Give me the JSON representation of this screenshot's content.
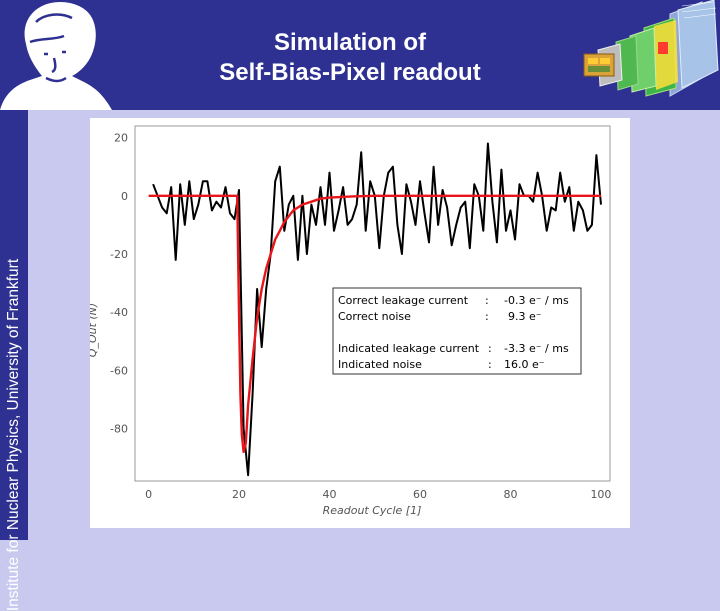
{
  "slide": {
    "title_line1": "Simulation of",
    "title_line2": "Self-Bias-Pixel readout",
    "sidebar_text": "Institute for Nuclear Physics, University of Frankfurt",
    "header_color": "#2e3192",
    "background_color": "#c9c9ef"
  },
  "info_box": {
    "lines": [
      {
        "label": "Correct leakage current",
        "sep": ":",
        "value": "-0.3 e⁻ / ms"
      },
      {
        "label": "Correct noise",
        "sep": ":",
        "value": "9.3 e⁻"
      },
      {
        "label": "Indicated leakage current",
        "sep": ":",
        "value": "-3.3 e⁻ / ms"
      },
      {
        "label": "Indicated noise",
        "sep": ":",
        "value": "16.0 e⁻"
      }
    ]
  },
  "chart_data": {
    "type": "line",
    "xlabel": "Readout  Cycle  [1]",
    "ylabel": "Q_Out  (N)",
    "xlim": [
      -3,
      102
    ],
    "ylim": [
      -98,
      24
    ],
    "x_ticks": [
      "0",
      "20",
      "40",
      "60",
      "80",
      "100"
    ],
    "y_ticks": [
      "20",
      "0",
      "-20",
      "-40",
      "-60",
      "-80"
    ],
    "grid": false,
    "series": [
      {
        "color": "#000000",
        "x": [
          1,
          2,
          3,
          4,
          5,
          6,
          7,
          8,
          9,
          10,
          11,
          12,
          13,
          14,
          15,
          16,
          17,
          18,
          19,
          20,
          21,
          22,
          23,
          24,
          25,
          26,
          27,
          28,
          29,
          30,
          31,
          32,
          33,
          34,
          35,
          36,
          37,
          38,
          39,
          40,
          41,
          42,
          43,
          44,
          45,
          46,
          47,
          48,
          49,
          50,
          51,
          52,
          53,
          54,
          55,
          56,
          57,
          58,
          59,
          60,
          61,
          62,
          63,
          64,
          65,
          66,
          67,
          68,
          69,
          70,
          71,
          72,
          73,
          74,
          75,
          76,
          77,
          78,
          79,
          80,
          81,
          82,
          83,
          84,
          85,
          86,
          87,
          88,
          89,
          90,
          91,
          92,
          93,
          94,
          95,
          96,
          97,
          98,
          99,
          100
        ],
        "values": [
          4,
          0,
          -4,
          -6,
          3,
          -22,
          4,
          -10,
          5,
          -8,
          -3,
          5,
          5,
          -5,
          -2,
          -4,
          3,
          -6,
          -8,
          2,
          -80,
          -96,
          -68,
          -32,
          -52,
          -32,
          -20,
          5,
          10,
          -12,
          -3,
          0,
          -22,
          0,
          -20,
          -3,
          -10,
          3,
          -10,
          8,
          -12,
          -5,
          3,
          -10,
          -8,
          -3,
          15,
          -12,
          5,
          0,
          -18,
          0,
          8,
          10,
          -10,
          -20,
          4,
          -2,
          -10,
          5,
          -6,
          -16,
          10,
          -10,
          2,
          -4,
          -17,
          -10,
          -4,
          -2,
          -18,
          4,
          0,
          -12,
          18,
          -2,
          -16,
          9,
          -12,
          -5,
          -15,
          4,
          0,
          0,
          -2,
          8,
          0,
          -12,
          -4,
          -5,
          8,
          -2,
          3,
          -12,
          -2,
          -5,
          -12,
          -10,
          14,
          -3
        ],
        "note": "noisy indicated output"
      },
      {
        "color": "#e8161a",
        "x": [
          0,
          10,
          19.6,
          20,
          20.3,
          20.6,
          21,
          21.5,
          22,
          23,
          24,
          25,
          26,
          27,
          28,
          29,
          30,
          31,
          32,
          34,
          36,
          38,
          40,
          45,
          50,
          60,
          70,
          80,
          90,
          100
        ],
        "values": [
          0,
          0,
          0,
          -40,
          -68,
          -82,
          -88,
          -85,
          -72,
          -56,
          -42,
          -32,
          -25,
          -20,
          -15,
          -12,
          -9,
          -7,
          -5,
          -3,
          -2,
          -1,
          -0.6,
          -0.2,
          0,
          0,
          0,
          0,
          0,
          0
        ],
        "note": "simulated correct signal"
      }
    ]
  }
}
